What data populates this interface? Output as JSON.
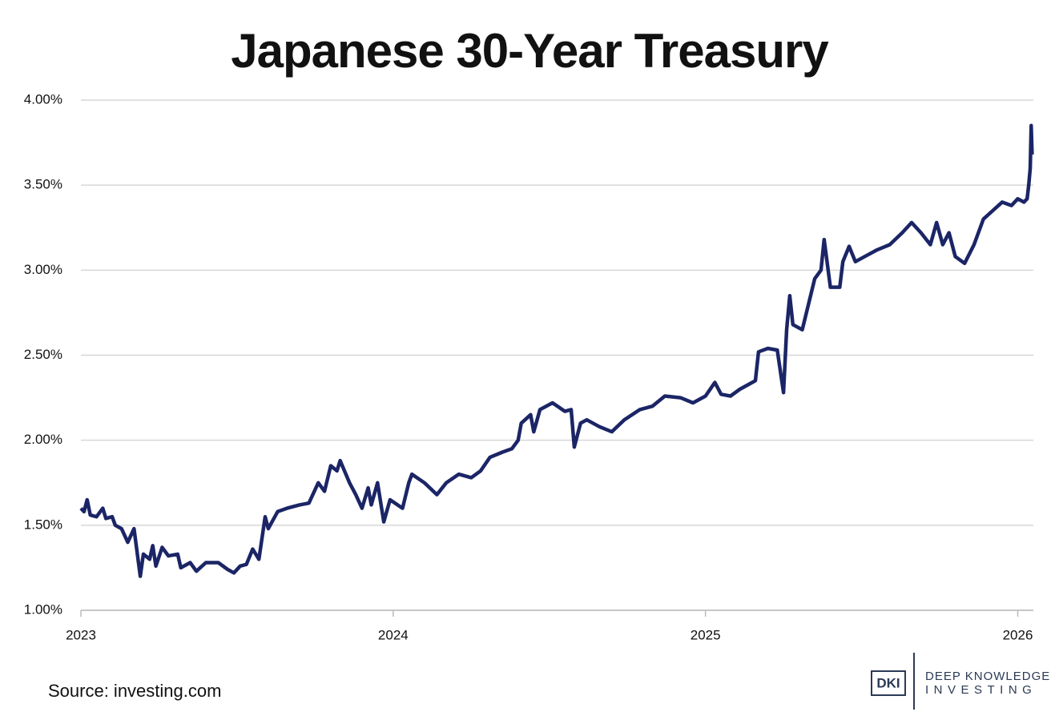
{
  "chart_data": {
    "type": "line",
    "title": "Japanese 30-Year Treasury",
    "source": "Source: investing.com",
    "logo": {
      "mark": "DKI",
      "line1": "DEEP KNOWLEDGE",
      "line2": "INVESTING"
    },
    "xlim": [
      2023,
      2026.05
    ],
    "xticks": [
      2023,
      2024,
      2025,
      2026
    ],
    "ylim": [
      1,
      4
    ],
    "yticks": [
      {
        "value": 1,
        "label": "1.00%"
      },
      {
        "value": 1.5,
        "label": "1.50%"
      },
      {
        "value": 2,
        "label": "2.00%"
      },
      {
        "value": 2.5,
        "label": "2.50%"
      },
      {
        "value": 3,
        "label": "3.00%"
      },
      {
        "value": 3.5,
        "label": "3.50%"
      },
      {
        "value": 4,
        "label": "4.00%"
      }
    ],
    "grid": true,
    "series": [
      {
        "name": "Japanese 30-Year Treasury",
        "color": "#1b2566",
        "x": [
          2023.0,
          2023.01,
          2023.02,
          2023.03,
          2023.05,
          2023.07,
          2023.08,
          2023.1,
          2023.11,
          2023.13,
          2023.15,
          2023.17,
          2023.19,
          2023.2,
          2023.22,
          2023.23,
          2023.24,
          2023.26,
          2023.28,
          2023.31,
          2023.32,
          2023.35,
          2023.37,
          2023.4,
          2023.44,
          2023.47,
          2023.49,
          2023.51,
          2023.53,
          2023.55,
          2023.57,
          2023.59,
          2023.6,
          2023.63,
          2023.66,
          2023.7,
          2023.73,
          2023.76,
          2023.78,
          2023.8,
          2023.82,
          2023.83,
          2023.86,
          2023.88,
          2023.9,
          2023.92,
          2023.93,
          2023.95,
          2023.97,
          2023.99,
          2024.03,
          2024.05,
          2024.06,
          2024.1,
          2024.14,
          2024.17,
          2024.21,
          2024.25,
          2024.28,
          2024.31,
          2024.35,
          2024.38,
          2024.4,
          2024.41,
          2024.44,
          2024.45,
          2024.47,
          2024.51,
          2024.55,
          2024.57,
          2024.58,
          2024.6,
          2024.62,
          2024.66,
          2024.7,
          2024.74,
          2024.79,
          2024.83,
          2024.87,
          2024.92,
          2024.96,
          2025.0,
          2025.03,
          2025.05,
          2025.08,
          2025.11,
          2025.14,
          2025.16,
          2025.17,
          2025.2,
          2025.23,
          2025.25,
          2025.26,
          2025.27,
          2025.28,
          2025.31,
          2025.33,
          2025.35,
          2025.37,
          2025.38,
          2025.4,
          2025.43,
          2025.44,
          2025.46,
          2025.48,
          2025.51,
          2025.55,
          2025.59,
          2025.63,
          2025.66,
          2025.69,
          2025.72,
          2025.74,
          2025.76,
          2025.78,
          2025.8,
          2025.83,
          2025.86,
          2025.89,
          2025.92,
          2025.95,
          2025.98,
          2026.0,
          2026.02,
          2026.03,
          2026.035,
          2026.04,
          2026.043,
          2026.046
        ],
        "values": [
          1.6,
          1.58,
          1.65,
          1.56,
          1.55,
          1.6,
          1.54,
          1.55,
          1.5,
          1.48,
          1.4,
          1.48,
          1.2,
          1.33,
          1.3,
          1.38,
          1.26,
          1.37,
          1.32,
          1.33,
          1.25,
          1.28,
          1.23,
          1.28,
          1.28,
          1.24,
          1.22,
          1.26,
          1.27,
          1.36,
          1.3,
          1.55,
          1.48,
          1.58,
          1.6,
          1.62,
          1.63,
          1.75,
          1.7,
          1.85,
          1.82,
          1.88,
          1.75,
          1.68,
          1.6,
          1.72,
          1.62,
          1.75,
          1.52,
          1.65,
          1.6,
          1.75,
          1.8,
          1.75,
          1.68,
          1.75,
          1.8,
          1.78,
          1.82,
          1.9,
          1.93,
          1.95,
          2.0,
          2.1,
          2.15,
          2.05,
          2.18,
          2.22,
          2.17,
          2.18,
          1.96,
          2.1,
          2.12,
          2.08,
          2.05,
          2.12,
          2.18,
          2.2,
          2.26,
          2.25,
          2.22,
          2.26,
          2.34,
          2.27,
          2.26,
          2.3,
          2.33,
          2.35,
          2.52,
          2.54,
          2.53,
          2.28,
          2.65,
          2.85,
          2.68,
          2.65,
          2.8,
          2.95,
          3.0,
          3.18,
          2.9,
          2.9,
          3.05,
          3.14,
          3.05,
          3.08,
          3.12,
          3.15,
          3.22,
          3.28,
          3.22,
          3.15,
          3.28,
          3.15,
          3.22,
          3.08,
          3.04,
          3.15,
          3.3,
          3.35,
          3.4,
          3.38,
          3.42,
          3.4,
          3.42,
          3.5,
          3.6,
          3.85,
          3.68
        ]
      }
    ]
  }
}
